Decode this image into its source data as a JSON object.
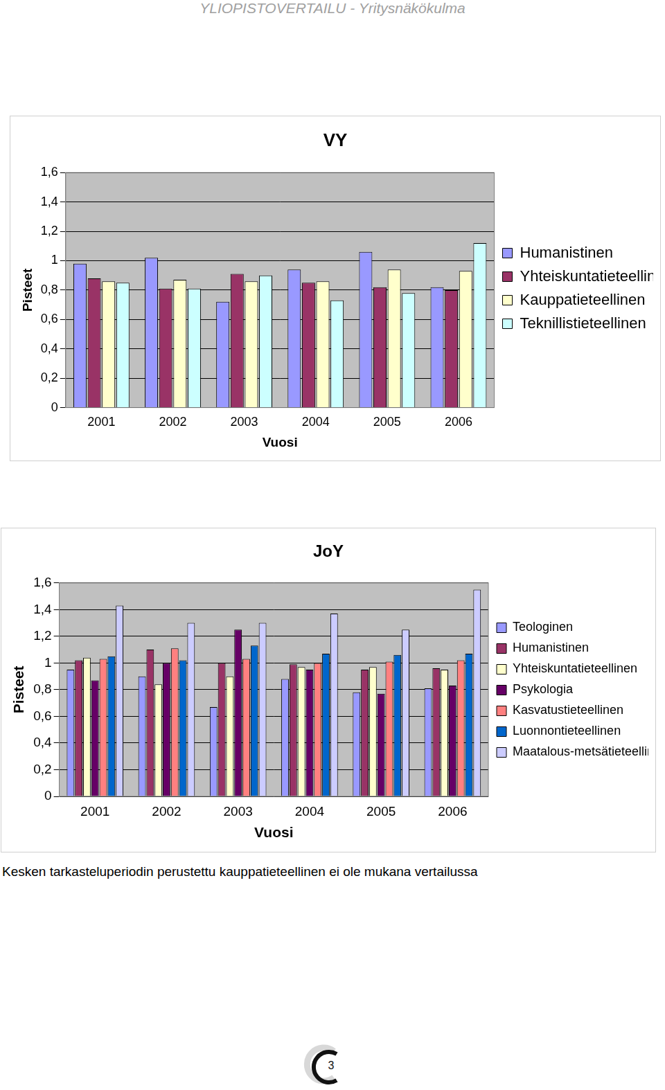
{
  "header": "YLIOPISTOVERTAILU - Yritysnäkökulma",
  "chart_data": [
    {
      "type": "bar",
      "title": "VY",
      "x_label": "Vuosi",
      "y_label": "Pisteet",
      "categories": [
        "2001",
        "2002",
        "2003",
        "2004",
        "2005",
        "2006"
      ],
      "series": [
        {
          "name": "Humanistinen",
          "color": "#9999ff",
          "values": [
            0.98,
            1.02,
            0.72,
            0.94,
            1.06,
            0.82
          ]
        },
        {
          "name": "Yhteiskuntatieteellinen",
          "color": "#993366",
          "values": [
            0.88,
            0.81,
            0.91,
            0.85,
            0.82,
            0.8
          ]
        },
        {
          "name": "Kauppatieteellinen",
          "color": "#ffffcc",
          "values": [
            0.86,
            0.87,
            0.86,
            0.86,
            0.94,
            0.93
          ]
        },
        {
          "name": "Teknillistieteellinen",
          "color": "#ccffff",
          "values": [
            0.85,
            0.81,
            0.9,
            0.73,
            0.78,
            1.12
          ]
        }
      ],
      "ylim": [
        0,
        1.6
      ],
      "yticks": [
        0,
        {
          "value": 0.2,
          "label": "0,2"
        },
        {
          "value": 0.4,
          "label": "0,4"
        },
        {
          "value": 0.6,
          "label": "0,6"
        },
        {
          "value": 0.8,
          "label": "0,8"
        },
        1,
        {
          "value": 1.2,
          "label": "1,2"
        },
        {
          "value": 1.4,
          "label": "1,4"
        },
        {
          "value": 1.6,
          "label": "1,6"
        }
      ],
      "grid": true,
      "legend": "right"
    },
    {
      "type": "bar",
      "title": "JoY",
      "x_label": "Vuosi",
      "y_label": "Pisteet",
      "categories": [
        "2001",
        "2002",
        "2003",
        "2004",
        "2005",
        "2006"
      ],
      "series": [
        {
          "name": "Teologinen",
          "color": "#9999ff",
          "values": [
            0.95,
            0.9,
            0.67,
            0.88,
            0.78,
            0.81
          ]
        },
        {
          "name": "Humanistinen",
          "color": "#993366",
          "values": [
            1.02,
            1.1,
            1.0,
            0.99,
            0.95,
            0.96
          ]
        },
        {
          "name": "Yhteiskuntatieteellinen",
          "color": "#ffffcc",
          "values": [
            1.04,
            0.84,
            0.9,
            0.97,
            0.97,
            0.95
          ]
        },
        {
          "name": "Psykologia",
          "color": "#660066",
          "values": [
            0.87,
            1.0,
            1.25,
            0.95,
            0.77,
            0.83
          ]
        },
        {
          "name": "Kasvatustieteellinen",
          "color": "#ff8080",
          "values": [
            1.03,
            1.11,
            1.03,
            1.0,
            1.01,
            1.02
          ]
        },
        {
          "name": "Luonnontieteellinen",
          "color": "#0066cc",
          "values": [
            1.05,
            1.02,
            1.13,
            1.07,
            1.06,
            1.07
          ]
        },
        {
          "name": "Maatalous-metsätieteellinen",
          "color": "#ccccff",
          "values": [
            1.43,
            1.3,
            1.3,
            1.37,
            1.25,
            1.55
          ]
        }
      ],
      "ylim": [
        0,
        1.6
      ],
      "yticks": [
        0,
        {
          "value": 0.2,
          "label": "0,2"
        },
        {
          "value": 0.4,
          "label": "0,4"
        },
        {
          "value": 0.6,
          "label": "0,6"
        },
        {
          "value": 0.8,
          "label": "0,8"
        },
        1,
        {
          "value": 1.2,
          "label": "1,2"
        },
        {
          "value": 1.4,
          "label": "1,4"
        },
        {
          "value": 1.6,
          "label": "1,6"
        }
      ],
      "grid": true,
      "legend": "right"
    }
  ],
  "caption": "Kesken tarkasteluperiodin perustettu kauppatieteellinen ei ole mukana vertailussa",
  "page_number": "3"
}
